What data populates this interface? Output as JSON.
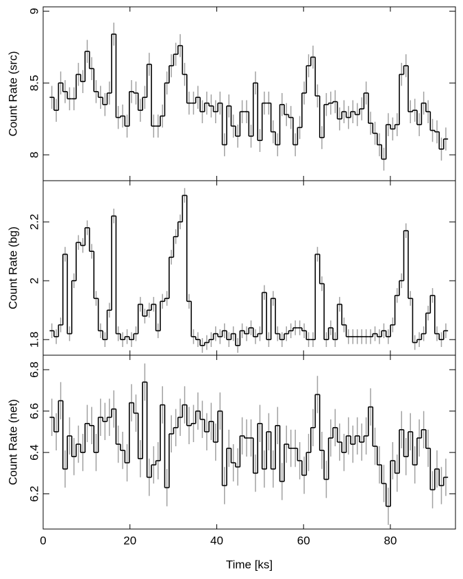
{
  "chart_data": [
    {
      "type": "step",
      "ylabel": "Count Rate (src)",
      "color": "#000000",
      "error_color": "#a0a0a0",
      "xlim": [
        0,
        95
      ],
      "xticks": [
        0,
        20,
        40,
        60,
        80
      ],
      "ylim": [
        7.82,
        9.03
      ],
      "yticks": [
        8,
        8.5,
        9
      ],
      "yerr": 0.08,
      "x": [
        2.0,
        3.02,
        4.04,
        5.06,
        6.08,
        7.1,
        8.12,
        9.14,
        10.16,
        11.18,
        12.2,
        13.22,
        14.24,
        15.26,
        16.28,
        17.3,
        18.32,
        19.34,
        20.36,
        21.38,
        22.4,
        23.42,
        24.44,
        25.46,
        26.48,
        27.5,
        28.52,
        29.54,
        30.56,
        31.58,
        32.6,
        33.62,
        34.64,
        35.66,
        36.68,
        37.7,
        38.72,
        39.74,
        40.76,
        41.78,
        42.8,
        43.82,
        44.84,
        45.86,
        46.88,
        47.9,
        48.92,
        49.94,
        50.96,
        51.98,
        53.0,
        54.02,
        55.04,
        56.06,
        57.08,
        58.1,
        59.12,
        60.14,
        61.16,
        62.18,
        63.2,
        64.22,
        65.24,
        66.26,
        67.28,
        68.3,
        69.32,
        70.34,
        71.36,
        72.38,
        73.4,
        74.42,
        75.44,
        76.46,
        77.48,
        78.5,
        79.52,
        80.54,
        81.56,
        82.58,
        83.6,
        84.62,
        85.64,
        86.66,
        87.68,
        88.7,
        89.72,
        90.74,
        91.76,
        92.78
      ],
      "values": [
        8.4,
        8.31,
        8.5,
        8.44,
        8.39,
        8.39,
        8.56,
        8.51,
        8.72,
        8.6,
        8.44,
        8.4,
        8.35,
        8.43,
        8.84,
        8.26,
        8.27,
        8.2,
        8.44,
        8.43,
        8.31,
        8.4,
        8.63,
        8.2,
        8.2,
        8.27,
        8.5,
        8.62,
        8.7,
        8.76,
        8.56,
        8.36,
        8.36,
        8.4,
        8.3,
        8.36,
        8.34,
        8.3,
        8.36,
        8.07,
        8.34,
        8.2,
        8.13,
        8.3,
        8.3,
        8.13,
        8.5,
        8.1,
        8.36,
        8.36,
        8.16,
        8.07,
        8.35,
        8.28,
        8.26,
        8.07,
        8.19,
        8.43,
        8.62,
        8.68,
        8.41,
        8.12,
        8.35,
        8.36,
        8.37,
        8.25,
        8.3,
        8.26,
        8.3,
        8.28,
        8.32,
        8.43,
        8.22,
        8.15,
        8.07,
        7.97,
        8.21,
        8.18,
        8.21,
        8.56,
        8.62,
        8.3,
        8.31,
        8.21,
        8.36,
        8.3,
        8.17,
        8.16,
        8.04,
        8.11
      ]
    },
    {
      "type": "step",
      "ylabel": "Count Rate (bg)",
      "color": "#000000",
      "error_color": "#a0a0a0",
      "xlim": [
        0,
        95
      ],
      "xticks": [
        0,
        20,
        40,
        60,
        80
      ],
      "ylim": [
        1.747,
        2.34
      ],
      "yticks": [
        1.8,
        2,
        2.2
      ],
      "yerr": 0.025,
      "x": [
        2.0,
        3.02,
        4.04,
        5.06,
        6.08,
        7.1,
        8.12,
        9.14,
        10.16,
        11.18,
        12.2,
        13.22,
        14.24,
        15.26,
        16.28,
        17.3,
        18.32,
        19.34,
        20.36,
        21.38,
        22.4,
        23.42,
        24.44,
        25.46,
        26.48,
        27.5,
        28.52,
        29.54,
        30.56,
        31.58,
        32.6,
        33.62,
        34.64,
        35.66,
        36.68,
        37.7,
        38.72,
        39.74,
        40.76,
        41.78,
        42.8,
        43.82,
        44.84,
        45.86,
        46.88,
        47.9,
        48.92,
        49.94,
        50.96,
        51.98,
        53.0,
        54.02,
        55.04,
        56.06,
        57.08,
        58.1,
        59.12,
        60.14,
        61.16,
        62.18,
        63.2,
        64.22,
        65.24,
        66.26,
        67.28,
        68.3,
        69.32,
        70.34,
        71.36,
        72.38,
        73.4,
        74.42,
        75.44,
        76.46,
        77.48,
        78.5,
        79.52,
        80.54,
        81.56,
        82.58,
        83.6,
        84.62,
        85.64,
        86.66,
        87.68,
        88.7,
        89.72,
        90.74,
        91.76,
        92.78
      ],
      "values": [
        1.83,
        1.81,
        1.85,
        2.09,
        1.82,
        2.0,
        2.13,
        2.12,
        2.18,
        2.1,
        1.94,
        1.83,
        1.8,
        1.9,
        2.22,
        1.82,
        1.8,
        1.81,
        1.8,
        1.82,
        1.92,
        1.88,
        1.9,
        1.92,
        1.83,
        1.93,
        1.94,
        2.08,
        2.15,
        2.2,
        2.29,
        1.93,
        1.81,
        1.8,
        1.78,
        1.79,
        1.8,
        1.82,
        1.81,
        1.83,
        1.8,
        1.82,
        1.78,
        1.83,
        1.82,
        1.84,
        1.81,
        1.82,
        1.96,
        1.8,
        1.94,
        1.82,
        1.8,
        1.82,
        1.83,
        1.84,
        1.84,
        1.83,
        1.8,
        1.8,
        2.09,
        1.99,
        1.8,
        1.84,
        1.8,
        1.92,
        1.85,
        1.81,
        1.81,
        1.81,
        1.81,
        1.81,
        1.81,
        1.82,
        1.81,
        1.83,
        1.81,
        1.85,
        1.95,
        2.0,
        2.17,
        1.94,
        1.79,
        1.8,
        1.82,
        1.89,
        1.95,
        1.82,
        1.8,
        1.83
      ]
    },
    {
      "type": "step",
      "ylabel": "Count Rate (net)",
      "xlabel": "Time [ks]",
      "color": "#000000",
      "error_color": "#a0a0a0",
      "xlim": [
        0,
        95
      ],
      "xticks": [
        0,
        20,
        40,
        60,
        80
      ],
      "ylim": [
        6.03,
        6.87
      ],
      "yticks": [
        6.2,
        6.4,
        6.6,
        6.8
      ],
      "yerr": 0.09,
      "x": [
        2.0,
        3.02,
        4.04,
        5.06,
        6.08,
        7.1,
        8.12,
        9.14,
        10.16,
        11.18,
        12.2,
        13.22,
        14.24,
        15.26,
        16.28,
        17.3,
        18.32,
        19.34,
        20.36,
        21.38,
        22.4,
        23.42,
        24.44,
        25.46,
        26.48,
        27.5,
        28.52,
        29.54,
        30.56,
        31.58,
        32.6,
        33.62,
        34.64,
        35.66,
        36.68,
        37.7,
        38.72,
        39.74,
        40.76,
        41.78,
        42.8,
        43.82,
        44.84,
        45.86,
        46.88,
        47.9,
        48.92,
        49.94,
        50.96,
        51.98,
        53.0,
        54.02,
        55.04,
        56.06,
        57.08,
        58.1,
        59.12,
        60.14,
        61.16,
        62.18,
        63.2,
        64.22,
        65.24,
        66.26,
        67.28,
        68.3,
        69.32,
        70.34,
        71.36,
        72.38,
        73.4,
        74.42,
        75.44,
        76.46,
        77.48,
        78.5,
        79.52,
        80.54,
        81.56,
        82.58,
        83.6,
        84.62,
        85.64,
        86.66,
        87.68,
        88.7,
        89.72,
        90.74,
        91.76,
        92.78
      ],
      "values": [
        6.57,
        6.5,
        6.65,
        6.32,
        6.48,
        6.38,
        6.44,
        6.4,
        6.54,
        6.53,
        6.4,
        6.57,
        6.55,
        6.57,
        6.61,
        6.44,
        6.41,
        6.35,
        6.64,
        6.59,
        6.37,
        6.74,
        6.28,
        6.34,
        6.36,
        6.63,
        6.23,
        6.49,
        6.52,
        6.57,
        6.63,
        6.53,
        6.54,
        6.6,
        6.56,
        6.5,
        6.55,
        6.45,
        6.6,
        6.24,
        6.42,
        6.35,
        6.33,
        6.48,
        6.47,
        6.47,
        6.3,
        6.54,
        6.32,
        6.5,
        6.32,
        6.53,
        6.26,
        6.44,
        6.42,
        6.42,
        6.36,
        6.29,
        6.4,
        6.52,
        6.68,
        6.41,
        6.27,
        6.47,
        6.52,
        6.45,
        6.4,
        6.48,
        6.44,
        6.48,
        6.45,
        6.48,
        6.62,
        6.43,
        6.34,
        6.25,
        6.14,
        6.36,
        6.3,
        6.51,
        6.38,
        6.5,
        6.34,
        6.47,
        6.51,
        6.42,
        6.22,
        6.32,
        6.24,
        6.28
      ]
    }
  ]
}
